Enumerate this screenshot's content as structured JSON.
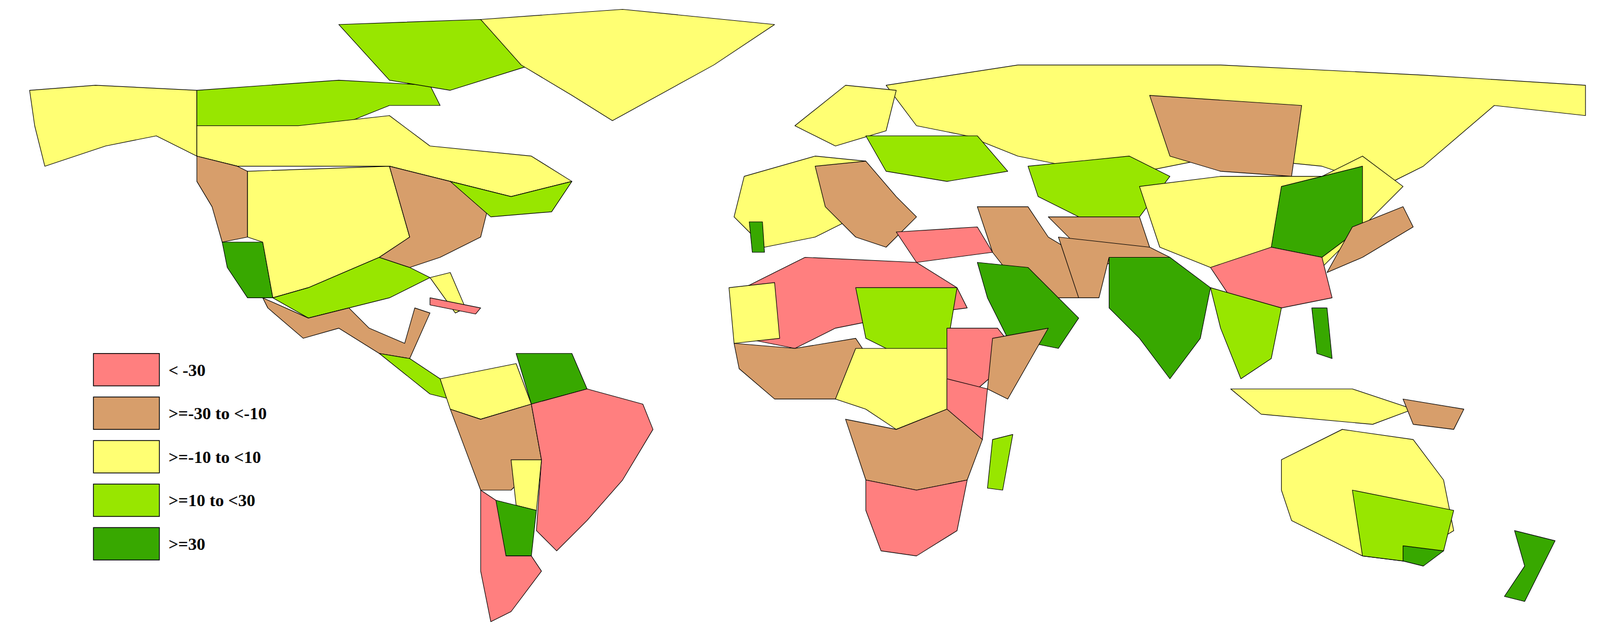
{
  "chart_data": {
    "type": "choropleth",
    "legend": {
      "labels": [
        "< -30",
        ">=-30 to <-10",
        ">=-10 to <10",
        ">=10 to <30",
        ">=30"
      ],
      "colors": [
        "#ff7f7f",
        "#d79e6b",
        "#ffff73",
        "#98e600",
        "#38a800"
      ]
    }
  }
}
